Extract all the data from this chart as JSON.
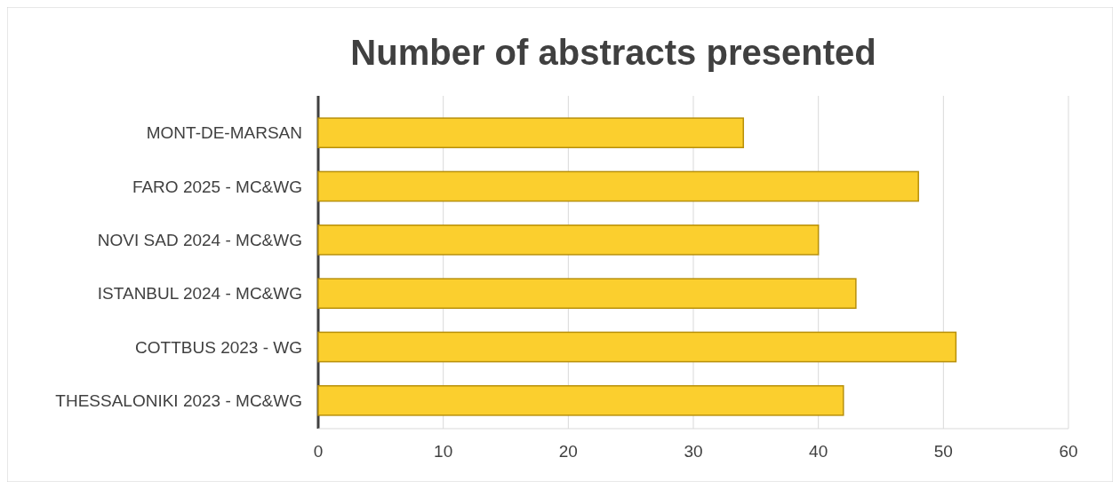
{
  "chart_data": {
    "type": "bar",
    "orientation": "horizontal",
    "title": "Number of abstracts presented",
    "categories": [
      "MONT-DE-MARSAN",
      "FARO 2025 - MC&WG",
      "NOVI SAD 2024 - MC&WG",
      "ISTANBUL 2024 - MC&WG",
      "COTTBUS 2023 - WG",
      "THESSALONIKI 2023 - MC&WG"
    ],
    "values": [
      34,
      48,
      40,
      43,
      51,
      42
    ],
    "color": "#fbcf2e",
    "xlim": [
      0,
      60
    ],
    "xticks": [
      0,
      10,
      20,
      30,
      40,
      50,
      60
    ],
    "grid": true
  }
}
